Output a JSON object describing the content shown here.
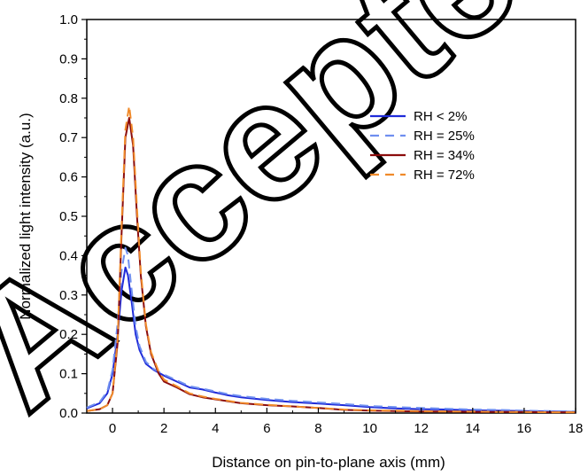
{
  "chart_data": {
    "type": "line",
    "title": "",
    "xlabel": "Distance on pin-to-plane axis (mm)",
    "ylabel": "Normalized light intensity (a.u.)",
    "xlim": [
      -1,
      18
    ],
    "ylim": [
      0.0,
      1.0
    ],
    "xticks": [
      0,
      2,
      4,
      6,
      8,
      10,
      12,
      14,
      16,
      18
    ],
    "yticks": [
      0.0,
      0.1,
      0.2,
      0.3,
      0.4,
      0.5,
      0.6,
      0.7,
      0.8,
      0.9,
      1.0
    ],
    "xtick_labels": [
      "0",
      "2",
      "4",
      "6",
      "8",
      "10",
      "12",
      "14",
      "16",
      "18"
    ],
    "ytick_labels": [
      "0.0",
      "0.1",
      "0.2",
      "0.3",
      "0.4",
      "0.5",
      "0.6",
      "0.7",
      "0.8",
      "0.9",
      "1.0"
    ],
    "grid": false,
    "legend_position": "top-right",
    "watermark": "Accepted",
    "series": [
      {
        "name": "RH < 2%",
        "color": "#1f2bd9",
        "dash": "solid",
        "x": [
          -1,
          -0.5,
          -0.2,
          0,
          0.2,
          0.35,
          0.5,
          0.6,
          0.75,
          0.9,
          1.05,
          1.3,
          1.6,
          2.0,
          2.5,
          3.0,
          3.5,
          4.0,
          4.5,
          5.0,
          6.0,
          7.0,
          8.0,
          9.0,
          10.0,
          11.0,
          12.0,
          13.0,
          14.0,
          15.0,
          16.0,
          17.0,
          18.0
        ],
        "y": [
          0.012,
          0.025,
          0.05,
          0.1,
          0.2,
          0.31,
          0.37,
          0.35,
          0.28,
          0.2,
          0.16,
          0.125,
          0.11,
          0.095,
          0.08,
          0.065,
          0.06,
          0.052,
          0.045,
          0.04,
          0.033,
          0.028,
          0.024,
          0.02,
          0.015,
          0.012,
          0.01,
          0.009,
          0.007,
          0.006,
          0.005,
          0.004,
          0.003
        ]
      },
      {
        "name": "RH = 25%",
        "color": "#6f8ff0",
        "dash": "dashed",
        "x": [
          -1,
          -0.5,
          -0.2,
          0,
          0.2,
          0.35,
          0.5,
          0.6,
          0.75,
          0.9,
          1.05,
          1.3,
          1.6,
          2.0,
          2.5,
          3.0,
          3.5,
          4.0,
          4.5,
          5.0,
          6.0,
          7.0,
          8.0,
          9.0,
          10.0,
          11.0,
          12.0,
          13.0,
          14.0,
          15.0,
          16.0,
          17.0,
          18.0
        ],
        "y": [
          0.014,
          0.028,
          0.055,
          0.11,
          0.23,
          0.36,
          0.42,
          0.4,
          0.31,
          0.22,
          0.17,
          0.13,
          0.112,
          0.098,
          0.083,
          0.068,
          0.062,
          0.055,
          0.048,
          0.043,
          0.036,
          0.031,
          0.027,
          0.023,
          0.018,
          0.015,
          0.013,
          0.011,
          0.009,
          0.008,
          0.006,
          0.005,
          0.004
        ]
      },
      {
        "name": "RH = 34%",
        "color": "#8b0c0c",
        "dash": "solid",
        "x": [
          -1,
          -0.5,
          -0.2,
          0,
          0.2,
          0.35,
          0.5,
          0.65,
          0.8,
          0.95,
          1.1,
          1.3,
          1.5,
          1.8,
          2.0,
          2.5,
          3.0,
          3.5,
          4.0,
          4.5,
          5.0,
          6.0,
          7.0,
          8.0,
          9.0,
          10.0,
          11.0,
          12.0,
          13.0,
          14.0,
          15.0,
          16.0,
          17.0,
          18.0
        ],
        "y": [
          0.005,
          0.01,
          0.02,
          0.05,
          0.18,
          0.45,
          0.7,
          0.75,
          0.68,
          0.5,
          0.35,
          0.22,
          0.15,
          0.1,
          0.08,
          0.065,
          0.048,
          0.04,
          0.035,
          0.03,
          0.025,
          0.02,
          0.017,
          0.013,
          0.008,
          0.006,
          0.005,
          0.004,
          0.004,
          0.003,
          0.003,
          0.003,
          0.002,
          0.002
        ]
      },
      {
        "name": "RH = 72%",
        "color": "#f08a2a",
        "dash": "dashed",
        "x": [
          -1,
          -0.5,
          -0.2,
          0,
          0.2,
          0.35,
          0.5,
          0.65,
          0.8,
          0.95,
          1.1,
          1.3,
          1.5,
          1.8,
          2.0,
          2.5,
          3.0,
          3.5,
          4.0,
          4.5,
          5.0,
          6.0,
          7.0,
          8.0,
          9.0,
          10.0,
          11.0,
          12.0,
          13.0,
          14.0,
          15.0,
          16.0,
          17.0,
          18.0
        ],
        "y": [
          0.005,
          0.01,
          0.02,
          0.05,
          0.19,
          0.47,
          0.72,
          0.78,
          0.7,
          0.52,
          0.36,
          0.225,
          0.155,
          0.105,
          0.085,
          0.068,
          0.05,
          0.042,
          0.036,
          0.031,
          0.026,
          0.021,
          0.017,
          0.013,
          0.009,
          0.007,
          0.006,
          0.005,
          0.004,
          0.004,
          0.003,
          0.003,
          0.002,
          0.002
        ]
      }
    ]
  }
}
